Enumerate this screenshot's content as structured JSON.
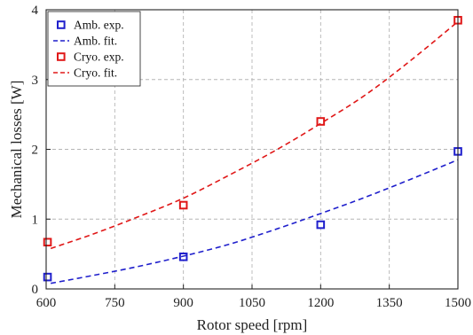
{
  "chart_data": {
    "type": "scatter",
    "xlabel": "Rotor speed [rpm]",
    "ylabel": "Mechanical losses [W]",
    "xlim": [
      600,
      1500
    ],
    "ylim": [
      0,
      4
    ],
    "xticks": [
      600,
      750,
      900,
      1050,
      1200,
      1350,
      1500
    ],
    "yticks": [
      0,
      1,
      2,
      3,
      4
    ],
    "xtick_labels": [
      "600",
      "750",
      "900",
      "1050",
      "1200",
      "1350",
      "1500"
    ],
    "ytick_labels": [
      "0",
      "1",
      "2",
      "3",
      "4"
    ],
    "grid": true,
    "legend_position": "top-left",
    "series": [
      {
        "name": "Amb. exp.",
        "kind": "markers",
        "marker": "square",
        "color": "#1f1fcc",
        "x": [
          603,
          900,
          1200,
          1500
        ],
        "y": [
          0.17,
          0.46,
          0.92,
          1.97
        ]
      },
      {
        "name": "Amb. fit.",
        "kind": "dashed-line",
        "color": "#1f1fcc",
        "x": [
          610,
          700,
          800,
          900,
          1000,
          1100,
          1200,
          1300,
          1400,
          1500
        ],
        "y": [
          0.08,
          0.19,
          0.32,
          0.47,
          0.64,
          0.85,
          1.08,
          1.32,
          1.58,
          1.85
        ]
      },
      {
        "name": "Cryo. exp.",
        "kind": "markers",
        "marker": "square",
        "color": "#e01818",
        "x": [
          603,
          900,
          1200,
          1500
        ],
        "y": [
          0.67,
          1.2,
          2.4,
          3.85
        ]
      },
      {
        "name": "Cryo. fit.",
        "kind": "dashed-line",
        "color": "#e01818",
        "x": [
          610,
          700,
          800,
          900,
          1000,
          1100,
          1200,
          1300,
          1400,
          1500
        ],
        "y": [
          0.58,
          0.78,
          1.03,
          1.3,
          1.63,
          1.98,
          2.37,
          2.79,
          3.29,
          3.83
        ]
      }
    ]
  }
}
